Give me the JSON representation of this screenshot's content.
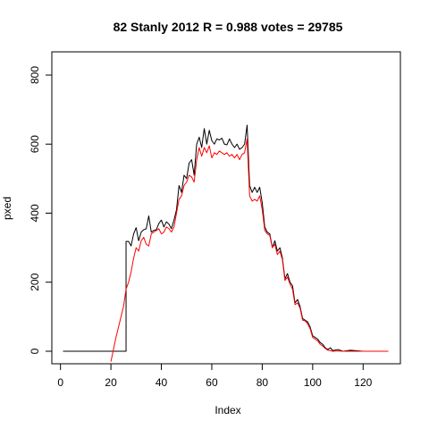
{
  "chart_data": {
    "type": "line",
    "title": "82 Stanly 2012 R = 0.988 votes = 29785",
    "xlabel": "Index",
    "ylabel": "pxed",
    "xlim": [
      1,
      130
    ],
    "ylim": [
      0,
      850
    ],
    "xticks": [
      0,
      20,
      40,
      60,
      80,
      100,
      120
    ],
    "yticks": [
      0,
      200,
      400,
      600,
      800
    ],
    "grid": false,
    "series": [
      {
        "color": "#000000",
        "x": [
          1,
          26,
          26,
          27,
          28,
          29,
          30,
          31,
          32,
          33,
          34,
          35,
          36,
          37,
          38,
          39,
          40,
          41,
          42,
          43,
          44,
          45,
          46,
          47,
          48,
          49,
          50,
          51,
          52,
          53,
          54,
          55,
          56,
          57,
          58,
          59,
          60,
          61,
          62,
          63,
          64,
          65,
          66,
          67,
          68,
          69,
          70,
          71,
          72,
          73,
          74,
          75,
          76,
          77,
          78,
          79,
          80,
          81,
          82,
          83,
          84,
          85,
          86,
          87,
          88,
          89,
          90,
          91,
          92,
          93,
          94,
          95,
          96,
          97,
          98,
          99,
          100,
          101,
          102,
          103,
          104,
          105,
          106,
          107,
          108,
          110,
          112,
          115,
          120,
          125,
          130
        ],
        "y": [
          0,
          0,
          318,
          318,
          305,
          340,
          358,
          320,
          345,
          352,
          355,
          392,
          345,
          350,
          352,
          370,
          380,
          360,
          375,
          368,
          355,
          380,
          410,
          480,
          460,
          510,
          500,
          545,
          555,
          510,
          600,
          620,
          590,
          645,
          600,
          640,
          610,
          600,
          615,
          612,
          617,
          600,
          598,
          615,
          600,
          590,
          600,
          585,
          590,
          600,
          655,
          480,
          460,
          475,
          460,
          475,
          430,
          360,
          345,
          340,
          300,
          320,
          290,
          300,
          270,
          210,
          225,
          200,
          190,
          140,
          150,
          130,
          95,
          90,
          85,
          70,
          45,
          40,
          35,
          25,
          20,
          10,
          5,
          10,
          2,
          5,
          0,
          3,
          0,
          0,
          0
        ]
      },
      {
        "color": "#ff0000",
        "x": [
          20,
          21,
          22,
          23,
          24,
          25,
          26,
          27,
          28,
          29,
          30,
          31,
          32,
          33,
          34,
          35,
          36,
          37,
          38,
          39,
          40,
          41,
          42,
          43,
          44,
          45,
          46,
          47,
          48,
          49,
          50,
          51,
          52,
          53,
          54,
          55,
          56,
          57,
          58,
          59,
          60,
          61,
          62,
          63,
          64,
          65,
          66,
          67,
          68,
          69,
          70,
          71,
          72,
          73,
          74,
          75,
          76,
          77,
          78,
          79,
          80,
          81,
          82,
          83,
          84,
          85,
          86,
          87,
          88,
          89,
          90,
          91,
          92,
          93,
          94,
          95,
          96,
          97,
          98,
          99,
          100,
          101,
          102,
          103,
          104,
          105,
          106,
          107,
          108,
          110,
          112,
          115,
          120,
          125,
          130
        ],
        "y": [
          -30,
          5,
          40,
          70,
          100,
          130,
          180,
          200,
          230,
          270,
          300,
          290,
          320,
          330,
          310,
          305,
          340,
          345,
          350,
          355,
          340,
          345,
          360,
          355,
          345,
          360,
          400,
          440,
          450,
          480,
          490,
          510,
          505,
          490,
          555,
          590,
          565,
          590,
          575,
          595,
          560,
          575,
          570,
          580,
          575,
          570,
          575,
          565,
          570,
          560,
          570,
          555,
          570,
          575,
          615,
          450,
          435,
          440,
          435,
          450,
          410,
          350,
          340,
          335,
          300,
          310,
          280,
          290,
          265,
          205,
          215,
          195,
          180,
          135,
          140,
          125,
          90,
          88,
          80,
          65,
          40,
          35,
          30,
          20,
          15,
          8,
          3,
          2,
          0,
          1,
          0,
          0,
          0,
          0,
          0
        ]
      }
    ]
  }
}
